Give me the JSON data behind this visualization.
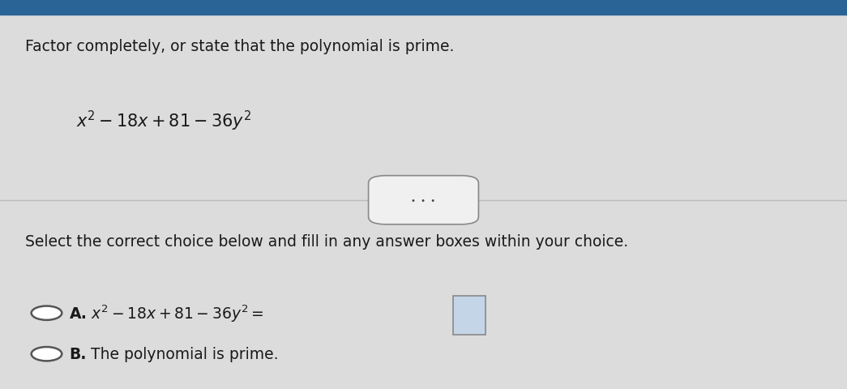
{
  "bg_color_main": "#dcdcdc",
  "bg_color_top": "#2a6496",
  "title_text": "Factor completely, or state that the polynomial is prime.",
  "divider_dots": "•  •  •",
  "select_text": "Select the correct choice below and fill in any answer boxes within your choice.",
  "choice_A_label": "A.",
  "choice_B_label": "B.",
  "choice_B_text": "The polynomial is prime.",
  "font_color": "#1a1a1a",
  "circle_color": "#555555",
  "line_color": "#bbbbbb",
  "dots_fill": "#f0f0f0",
  "dots_edge": "#888888",
  "box_fill": "#c5d5e8",
  "box_edge": "#888888"
}
